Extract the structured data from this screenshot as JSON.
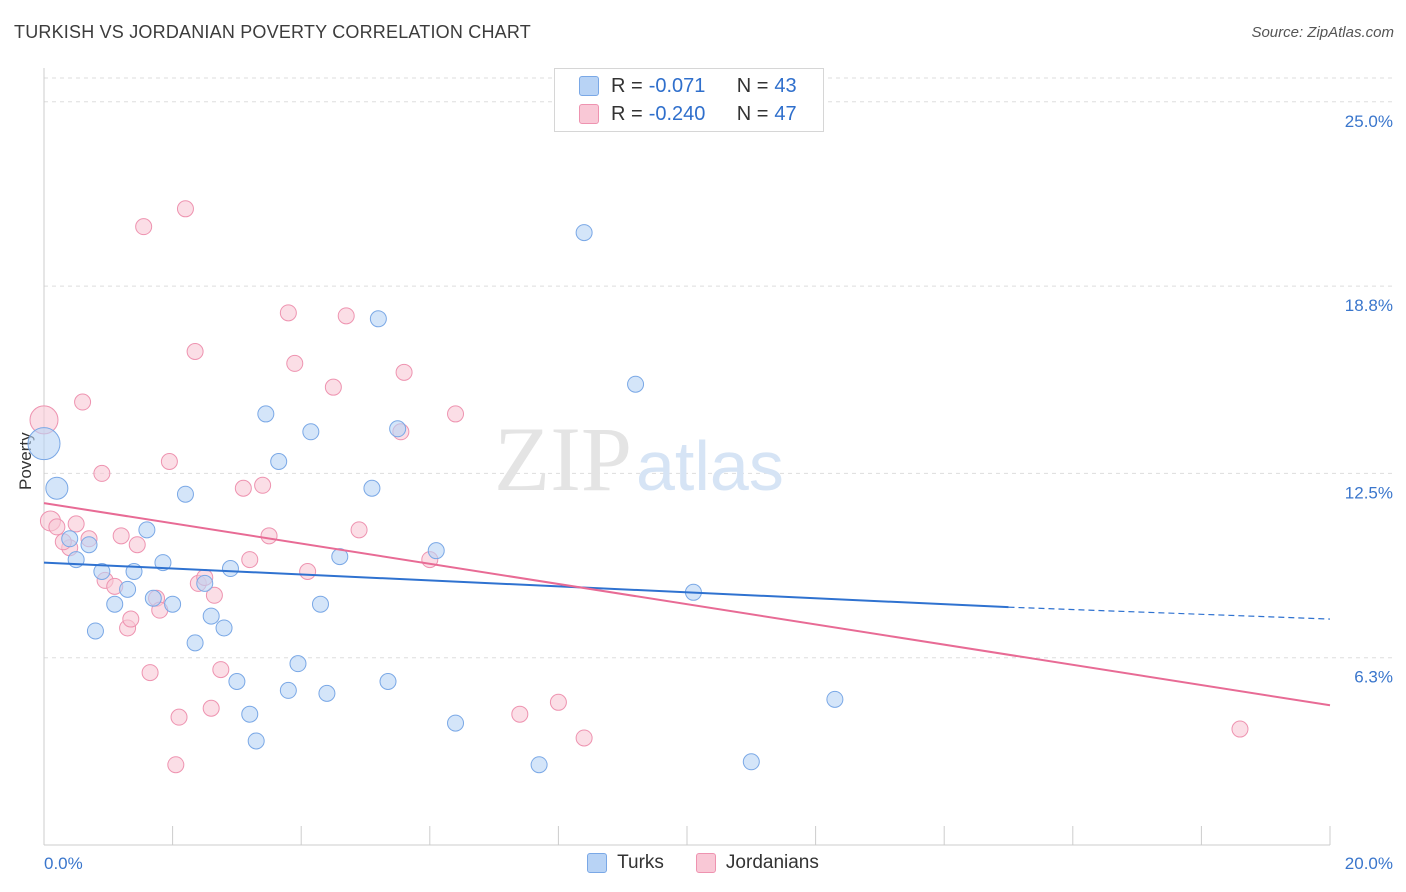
{
  "header": {
    "title": "TURKISH VS JORDANIAN POVERTY CORRELATION CHART",
    "source": "Source: ZipAtlas.com"
  },
  "legend": {
    "rows": [
      {
        "r_label": "R =",
        "r_value": "-0.071",
        "n_label": "N =",
        "n_value": "43"
      },
      {
        "r_label": "R =",
        "r_value": "-0.240",
        "n_label": "N =",
        "n_value": "47"
      }
    ]
  },
  "bottom_legend": [
    "Turks",
    "Jordanians"
  ],
  "watermark": {
    "zip": "ZIP",
    "atlas": "atlas"
  },
  "colors": {
    "turks_fill": "#b8d3f5",
    "turks_stroke": "#7aa8e6",
    "turks_line": "#2f72d0",
    "jordanians_fill": "#f9c8d6",
    "jordanians_stroke": "#ee93b0",
    "jordanians_line": "#e86b95",
    "axis_text": "#3a76cc",
    "grid": "#dddddd"
  },
  "chart_data": {
    "type": "scatter",
    "title": "TURKISH VS JORDANIAN POVERTY CORRELATION CHART",
    "xlabel": "",
    "ylabel": "Poverty",
    "xlim": [
      0,
      20
    ],
    "ylim": [
      0,
      25.8
    ],
    "x_tick_labels": [
      "0.0%",
      "20.0%"
    ],
    "y_ticks": [
      6.3,
      12.5,
      18.8,
      25.0
    ],
    "y_tick_labels": [
      "6.3%",
      "12.5%",
      "18.8%",
      "25.0%"
    ],
    "grid": "horizontal dashed",
    "legend_position": "top-center",
    "series": [
      {
        "name": "Turks",
        "r": -0.071,
        "n": 43,
        "trend": {
          "x0": 0,
          "y0": 9.5,
          "x1": 15.0,
          "y1": 8.0,
          "dash_to_x": 20,
          "dash_to_y": 7.6
        },
        "points": [
          {
            "x": 0.0,
            "y": 13.5,
            "s": 16
          },
          {
            "x": 0.2,
            "y": 12.0,
            "s": 11
          },
          {
            "x": 0.4,
            "y": 10.3
          },
          {
            "x": 0.5,
            "y": 9.6
          },
          {
            "x": 0.7,
            "y": 10.1
          },
          {
            "x": 0.8,
            "y": 7.2
          },
          {
            "x": 0.9,
            "y": 9.2
          },
          {
            "x": 1.1,
            "y": 8.1
          },
          {
            "x": 1.3,
            "y": 8.6
          },
          {
            "x": 1.4,
            "y": 9.2
          },
          {
            "x": 1.6,
            "y": 10.6
          },
          {
            "x": 1.7,
            "y": 8.3
          },
          {
            "x": 1.85,
            "y": 9.5
          },
          {
            "x": 2.0,
            "y": 8.1
          },
          {
            "x": 2.2,
            "y": 11.8
          },
          {
            "x": 2.35,
            "y": 6.8
          },
          {
            "x": 2.5,
            "y": 8.8
          },
          {
            "x": 2.6,
            "y": 7.7
          },
          {
            "x": 2.8,
            "y": 7.3
          },
          {
            "x": 2.9,
            "y": 9.3
          },
          {
            "x": 3.0,
            "y": 5.5
          },
          {
            "x": 3.2,
            "y": 4.4
          },
          {
            "x": 3.3,
            "y": 3.5
          },
          {
            "x": 3.45,
            "y": 14.5
          },
          {
            "x": 3.65,
            "y": 12.9
          },
          {
            "x": 3.8,
            "y": 5.2
          },
          {
            "x": 3.95,
            "y": 6.1
          },
          {
            "x": 4.15,
            "y": 13.9
          },
          {
            "x": 4.3,
            "y": 8.1
          },
          {
            "x": 4.4,
            "y": 5.1
          },
          {
            "x": 4.6,
            "y": 9.7
          },
          {
            "x": 5.1,
            "y": 12.0
          },
          {
            "x": 5.2,
            "y": 17.7
          },
          {
            "x": 5.35,
            "y": 5.5
          },
          {
            "x": 5.5,
            "y": 14.0
          },
          {
            "x": 6.1,
            "y": 9.9
          },
          {
            "x": 6.4,
            "y": 4.1
          },
          {
            "x": 7.7,
            "y": 2.7
          },
          {
            "x": 8.4,
            "y": 20.6
          },
          {
            "x": 9.2,
            "y": 15.5
          },
          {
            "x": 10.1,
            "y": 8.5
          },
          {
            "x": 11.0,
            "y": 2.8
          },
          {
            "x": 12.3,
            "y": 4.9
          }
        ]
      },
      {
        "name": "Jordanians",
        "r": -0.24,
        "n": 47,
        "trend": {
          "x0": 0,
          "y0": 11.5,
          "x1": 20,
          "y1": 4.7
        },
        "points": [
          {
            "x": 0.0,
            "y": 14.3,
            "s": 14
          },
          {
            "x": 0.1,
            "y": 10.9,
            "s": 10
          },
          {
            "x": 0.2,
            "y": 10.7
          },
          {
            "x": 0.4,
            "y": 10.0
          },
          {
            "x": 0.5,
            "y": 10.8
          },
          {
            "x": 0.6,
            "y": 14.9
          },
          {
            "x": 0.7,
            "y": 10.3
          },
          {
            "x": 0.9,
            "y": 12.5
          },
          {
            "x": 0.95,
            "y": 8.9
          },
          {
            "x": 1.1,
            "y": 8.7
          },
          {
            "x": 1.2,
            "y": 10.4
          },
          {
            "x": 1.3,
            "y": 7.3
          },
          {
            "x": 1.35,
            "y": 7.6
          },
          {
            "x": 1.45,
            "y": 10.1
          },
          {
            "x": 1.55,
            "y": 20.8
          },
          {
            "x": 1.65,
            "y": 5.8
          },
          {
            "x": 1.75,
            "y": 8.3
          },
          {
            "x": 1.8,
            "y": 7.9
          },
          {
            "x": 1.95,
            "y": 12.9
          },
          {
            "x": 2.05,
            "y": 2.7
          },
          {
            "x": 2.1,
            "y": 4.3
          },
          {
            "x": 2.2,
            "y": 21.4
          },
          {
            "x": 2.35,
            "y": 16.6
          },
          {
            "x": 2.4,
            "y": 8.8
          },
          {
            "x": 2.5,
            "y": 9.0
          },
          {
            "x": 2.6,
            "y": 4.6
          },
          {
            "x": 2.65,
            "y": 8.4
          },
          {
            "x": 2.75,
            "y": 5.9
          },
          {
            "x": 3.1,
            "y": 12.0
          },
          {
            "x": 3.2,
            "y": 9.6
          },
          {
            "x": 3.4,
            "y": 12.1
          },
          {
            "x": 3.5,
            "y": 10.4
          },
          {
            "x": 3.8,
            "y": 17.9
          },
          {
            "x": 3.9,
            "y": 16.2
          },
          {
            "x": 4.1,
            "y": 9.2
          },
          {
            "x": 4.5,
            "y": 15.4
          },
          {
            "x": 4.7,
            "y": 17.8
          },
          {
            "x": 4.9,
            "y": 10.6
          },
          {
            "x": 5.55,
            "y": 13.9
          },
          {
            "x": 5.6,
            "y": 15.9
          },
          {
            "x": 6.0,
            "y": 9.6
          },
          {
            "x": 6.4,
            "y": 14.5
          },
          {
            "x": 7.4,
            "y": 4.4
          },
          {
            "x": 8.0,
            "y": 4.8
          },
          {
            "x": 8.4,
            "y": 3.6
          },
          {
            "x": 18.6,
            "y": 3.9
          },
          {
            "x": 0.3,
            "y": 10.2
          }
        ]
      }
    ]
  }
}
